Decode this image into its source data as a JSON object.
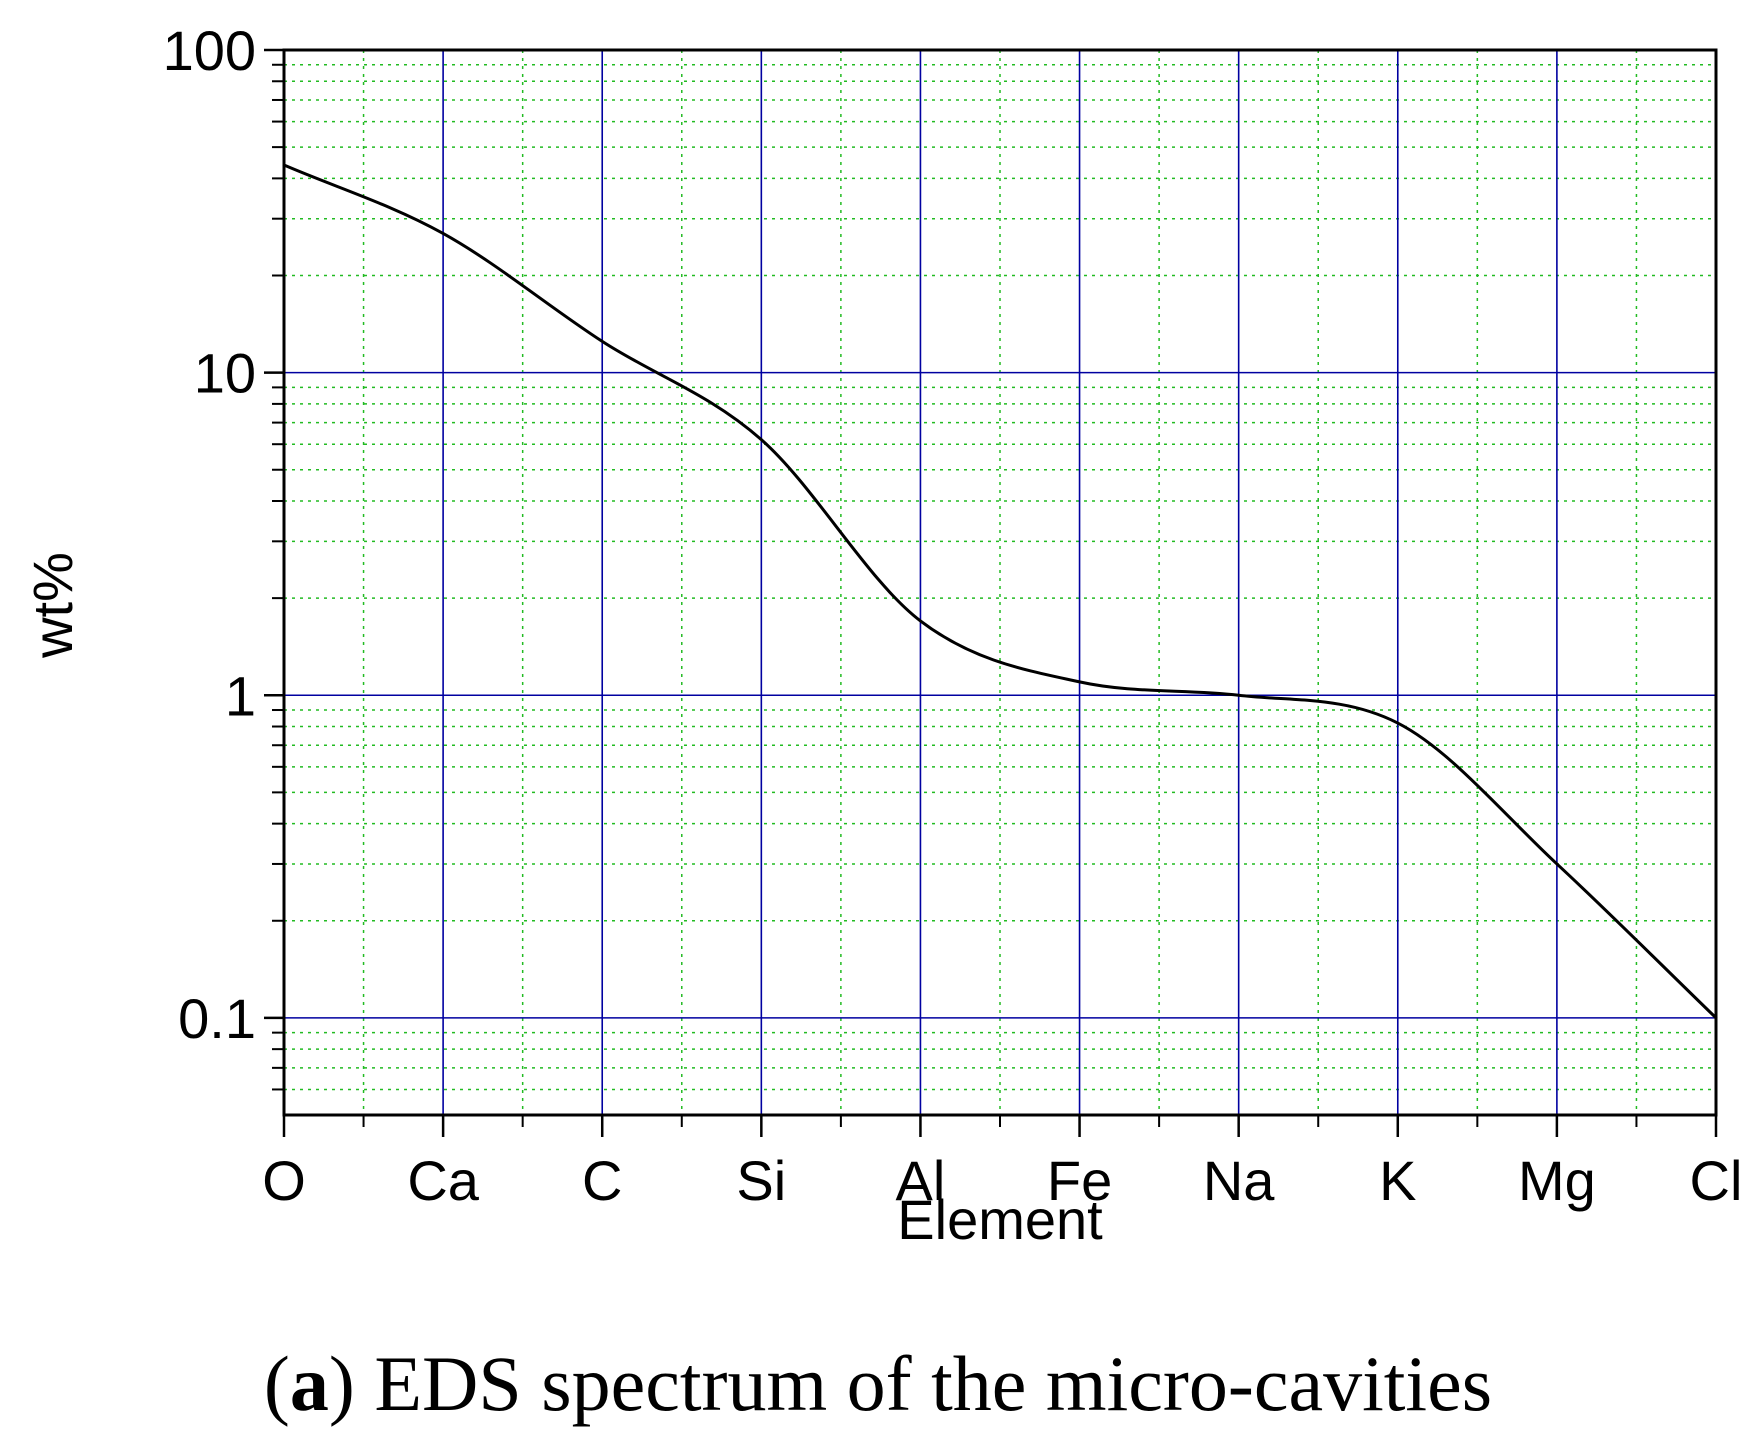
{
  "chart_data": {
    "type": "line",
    "title": "",
    "xlabel": "Element",
    "ylabel": "wt%",
    "yscale": "log",
    "ylim": [
      0.05,
      100
    ],
    "y_ticks": [
      {
        "value": 0.1,
        "label": "0.1"
      },
      {
        "value": 1,
        "label": "1"
      },
      {
        "value": 10,
        "label": "10"
      },
      {
        "value": 100,
        "label": "100"
      }
    ],
    "grid": true,
    "categories": [
      "O",
      "Ca",
      "C",
      "Si",
      "Al",
      "Fe",
      "Na",
      "K",
      "Mg",
      "Cl"
    ],
    "series": [
      {
        "name": "wt%",
        "values": [
          44,
          27,
          12.5,
          6.2,
          1.7,
          1.1,
          1.0,
          0.82,
          0.3,
          0.1
        ]
      }
    ],
    "colors": {
      "major_grid": "#0000a0",
      "minor_grid": "#22bb22",
      "line": "#000000",
      "axis": "#000000"
    }
  },
  "caption": {
    "letter": "a",
    "open_paren": "(",
    "close_paren": ")",
    "text": " EDS spectrum of the micro-cavities"
  }
}
